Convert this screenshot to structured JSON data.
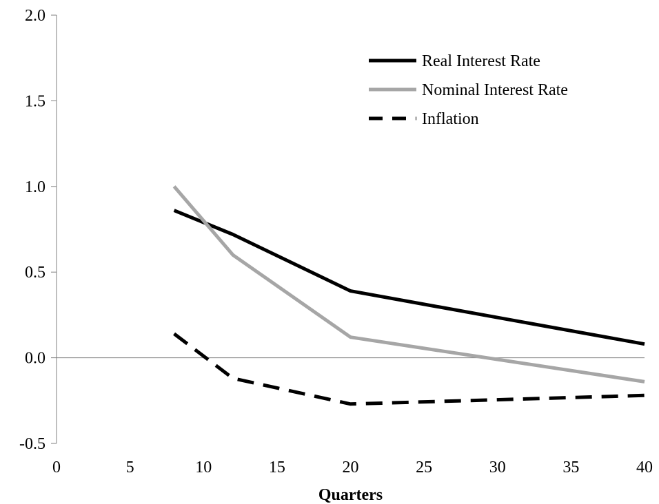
{
  "chart_data": {
    "type": "line",
    "title": "",
    "xlabel": "Quarters",
    "ylabel": "",
    "xlim": [
      0,
      40
    ],
    "ylim": [
      -0.5,
      2.0
    ],
    "xticks": [
      0,
      5,
      10,
      15,
      20,
      25,
      30,
      35,
      40
    ],
    "yticks": [
      -0.5,
      0.0,
      0.5,
      1.0,
      1.5,
      2.0
    ],
    "ytick_labels": [
      "-0.5",
      "0.0",
      "0.5",
      "1.0",
      "1.5",
      "2.0"
    ],
    "xtick_labels": [
      "0",
      "5",
      "10",
      "15",
      "20",
      "25",
      "30",
      "35",
      "40"
    ],
    "grid": false,
    "legend_position": "top-right",
    "series": [
      {
        "name": "Real Interest Rate",
        "color": "#000000",
        "style": "solid",
        "x": [
          8,
          12,
          20,
          40
        ],
        "y": [
          0.86,
          0.72,
          0.39,
          0.08
        ]
      },
      {
        "name": "Nominal Interest Rate",
        "color": "#a6a6a6",
        "style": "solid",
        "x": [
          8,
          12,
          20,
          40
        ],
        "y": [
          1.0,
          0.6,
          0.12,
          -0.14
        ]
      },
      {
        "name": "Inflation",
        "color": "#000000",
        "style": "dashed",
        "x": [
          8,
          12,
          20,
          40
        ],
        "y": [
          0.14,
          -0.12,
          -0.27,
          -0.22
        ]
      }
    ]
  }
}
